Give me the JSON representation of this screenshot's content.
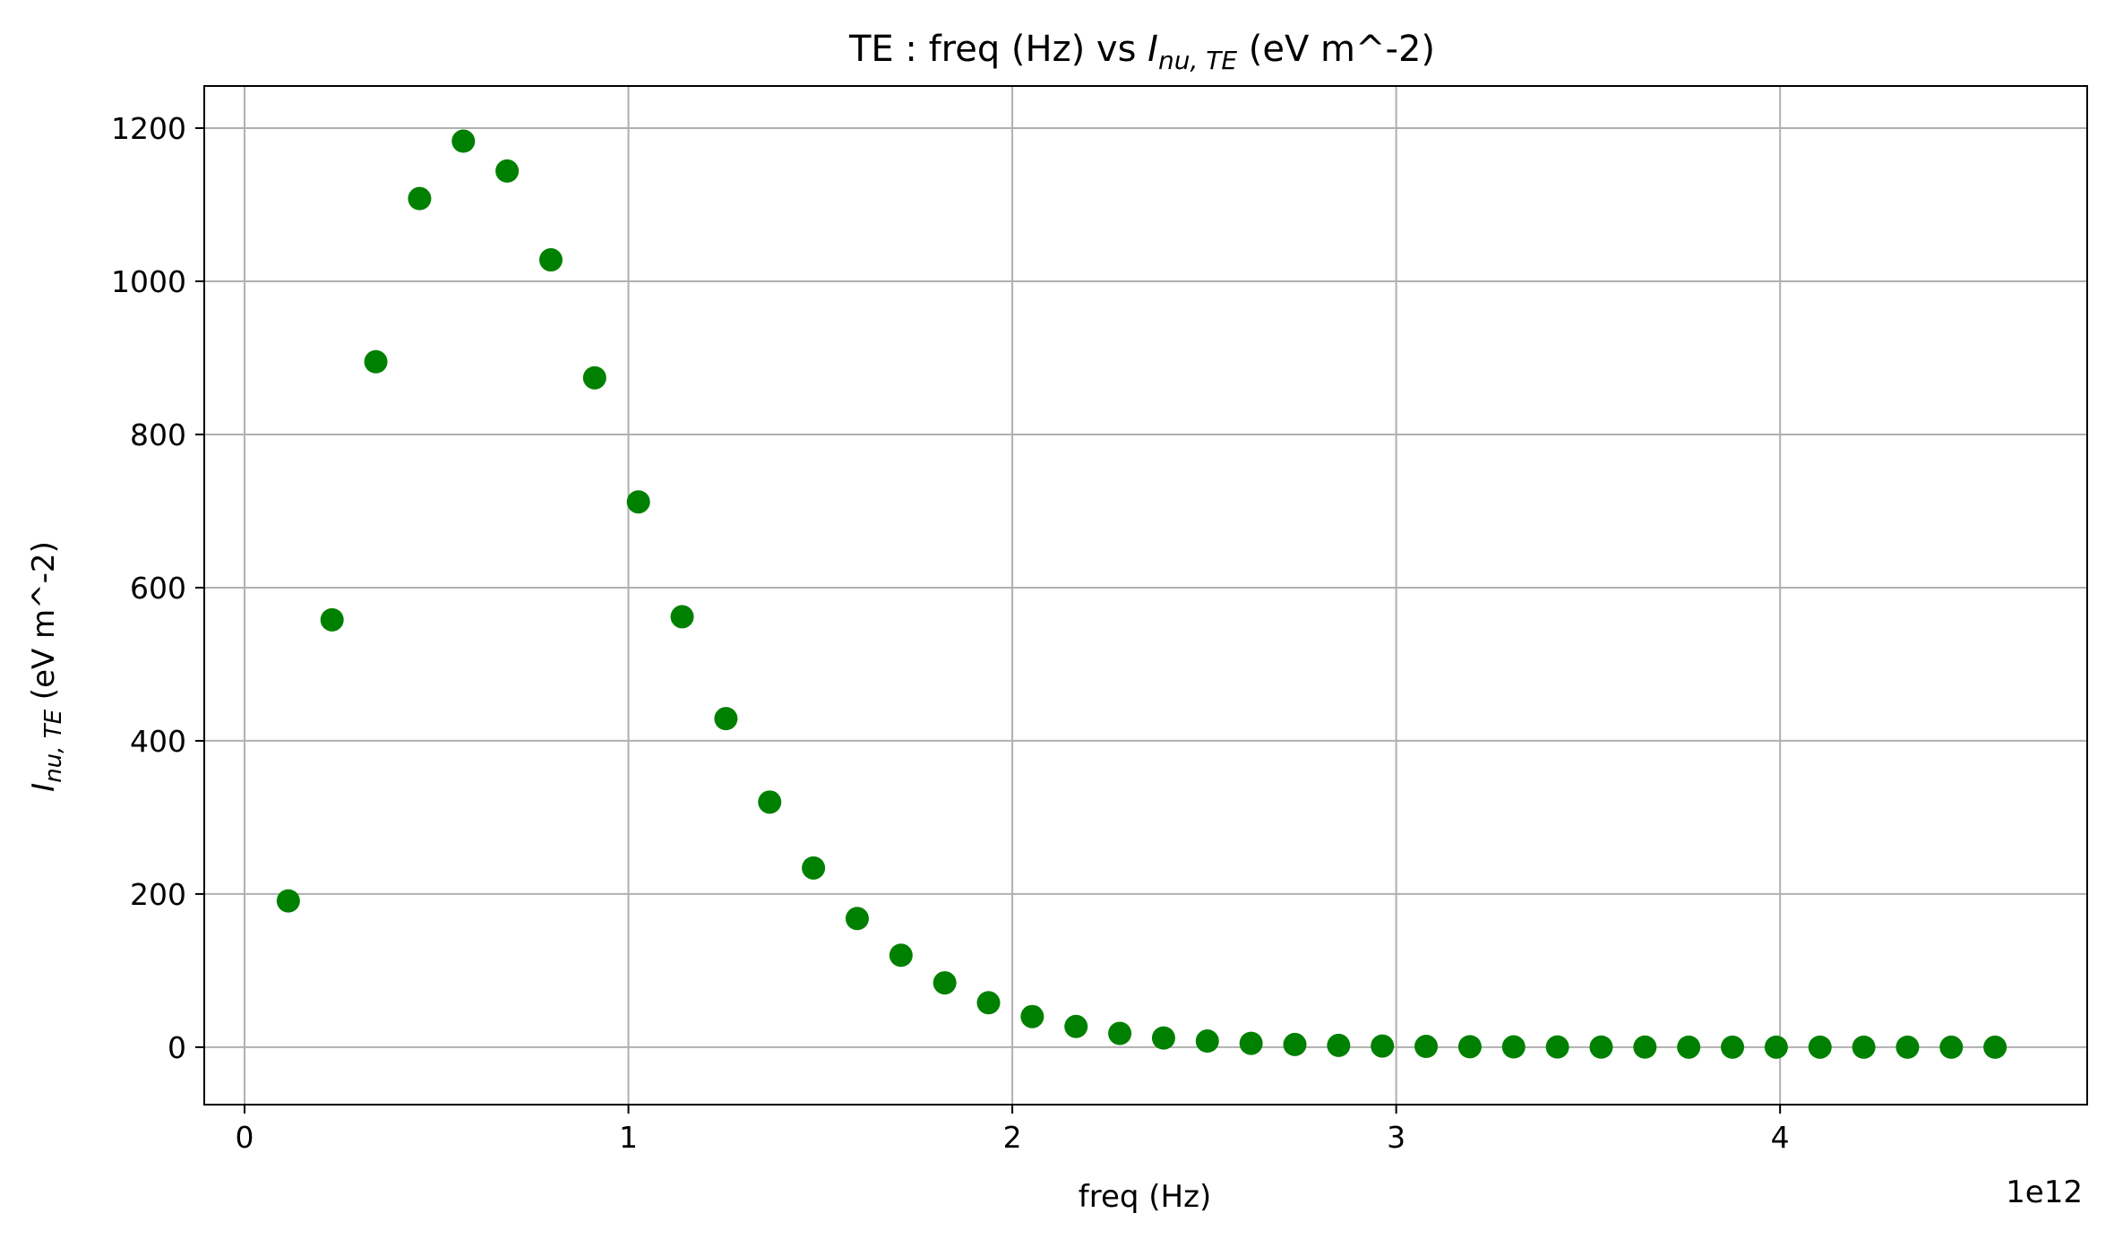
{
  "chart_data": {
    "type": "scatter",
    "title": {
      "prefix": "TE : freq (Hz) vs ",
      "math_main": "I",
      "math_sub": "nu, TE",
      "suffix": " (eV m^-2)"
    },
    "xlabel": "freq (Hz)",
    "ylabel": {
      "math_main": "I",
      "math_sub": "nu, TE",
      "suffix": " (eV m^-2)"
    },
    "x_offset_label": "1e12",
    "xlim": [
      -0.105,
      4.8
    ],
    "ylim": [
      -75,
      1255
    ],
    "x_ticks": [
      0,
      1,
      2,
      3,
      4
    ],
    "x_tick_labels": [
      "0",
      "1",
      "2",
      "3",
      "4"
    ],
    "y_ticks": [
      0,
      200,
      400,
      600,
      800,
      1000,
      1200
    ],
    "y_tick_labels": [
      "0",
      "200",
      "400",
      "600",
      "800",
      "1000",
      "1200"
    ],
    "grid": true,
    "marker_color": "#008000",
    "x": [
      0.114,
      0.228,
      0.342,
      0.456,
      0.57,
      0.684,
      0.798,
      0.912,
      1.026,
      1.14,
      1.254,
      1.368,
      1.482,
      1.596,
      1.71,
      1.824,
      1.938,
      2.052,
      2.166,
      2.28,
      2.394,
      2.508,
      2.622,
      2.736,
      2.85,
      2.964,
      3.078,
      3.192,
      3.306,
      3.42,
      3.534,
      3.648,
      3.762,
      3.876,
      3.99,
      4.104,
      4.218,
      4.332,
      4.446,
      4.56
    ],
    "y": [
      191,
      558,
      895,
      1108,
      1183,
      1144,
      1028,
      874,
      712,
      562,
      429,
      320,
      234,
      168,
      120,
      84,
      58,
      40,
      27,
      18,
      12,
      8,
      5,
      3.5,
      2.3,
      1.5,
      1.0,
      0.6,
      0.4,
      0.25,
      0.16,
      0.1,
      0.06,
      0.04,
      0.03,
      0.02,
      0.01,
      0.007,
      0.004,
      0.003
    ]
  }
}
